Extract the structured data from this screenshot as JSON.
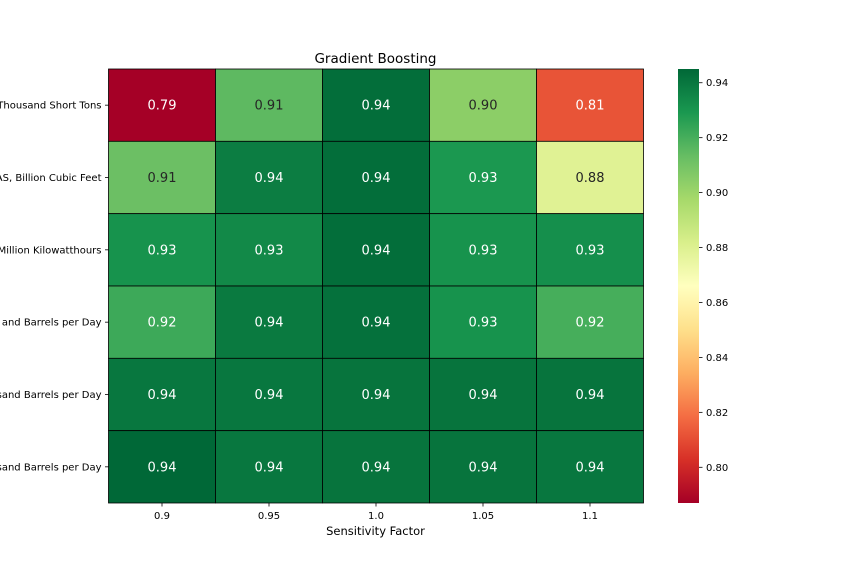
{
  "chart_data": {
    "type": "heatmap",
    "title": "Gradient Boosting",
    "xlabel": "Sensitivity Factor",
    "ylabel": "",
    "x_categories": [
      "0.9",
      "0.95",
      "1.0",
      "1.05",
      "1.1"
    ],
    "y_categories": [
      "Thousand Short Tons",
      "AS, Billion Cubic Feet",
      "Million Kilowatthours",
      "and Barrels per Day",
      "sand Barrels per Day",
      "sand Barrels per Day"
    ],
    "values": [
      [
        0.79,
        0.91,
        0.94,
        0.9,
        0.81
      ],
      [
        0.91,
        0.94,
        0.94,
        0.93,
        0.88
      ],
      [
        0.93,
        0.93,
        0.94,
        0.93,
        0.93
      ],
      [
        0.92,
        0.94,
        0.94,
        0.93,
        0.92
      ],
      [
        0.94,
        0.94,
        0.94,
        0.94,
        0.94
      ],
      [
        0.94,
        0.94,
        0.94,
        0.94,
        0.94
      ]
    ],
    "value_labels": [
      [
        "0.79",
        "0.91",
        "0.94",
        "0.90",
        "0.81"
      ],
      [
        "0.91",
        "0.94",
        "0.94",
        "0.93",
        "0.88"
      ],
      [
        "0.93",
        "0.93",
        "0.94",
        "0.93",
        "0.93"
      ],
      [
        "0.92",
        "0.94",
        "0.94",
        "0.93",
        "0.92"
      ],
      [
        "0.94",
        "0.94",
        "0.94",
        "0.94",
        "0.94"
      ],
      [
        "0.94",
        "0.94",
        "0.94",
        "0.94",
        "0.94"
      ]
    ],
    "shade": [
      [
        0.787,
        0.915,
        0.943,
        0.904,
        0.812
      ],
      [
        0.912,
        0.938,
        0.943,
        0.929,
        0.879
      ],
      [
        0.931,
        0.934,
        0.943,
        0.931,
        0.932
      ],
      [
        0.922,
        0.939,
        0.942,
        0.931,
        0.92
      ],
      [
        0.94,
        0.94,
        0.941,
        0.941,
        0.941
      ],
      [
        0.945,
        0.94,
        0.941,
        0.941,
        0.94
      ]
    ],
    "colorbar": {
      "colormap": "RdYlGn",
      "vmin": 0.787,
      "vmax": 0.945,
      "ticks": [
        0.8,
        0.82,
        0.84,
        0.86,
        0.88,
        0.9,
        0.92,
        0.94
      ],
      "tick_labels": [
        "0.80",
        "0.82",
        "0.84",
        "0.86",
        "0.88",
        "0.90",
        "0.92",
        "0.94"
      ]
    }
  }
}
